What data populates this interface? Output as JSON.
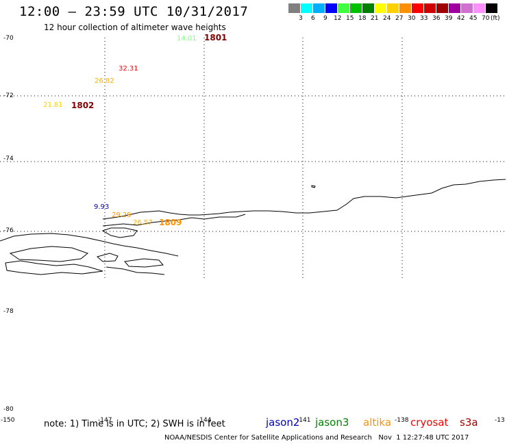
{
  "title": "12:00 – 23:59 UTC 10/31/2017",
  "subtitle": "12 hour collection of altimeter wave heights",
  "color_scale": {
    "unit": "(ft)",
    "colors": [
      "#808080",
      "#00ffff",
      "#00b0ff",
      "#0000ff",
      "#40ff40",
      "#00c000",
      "#008000",
      "#ffff00",
      "#ffd000",
      "#ff9000",
      "#ff0000",
      "#d00000",
      "#a00000",
      "#a000a0",
      "#d070d0",
      "#ff90ff",
      "#000000"
    ],
    "labels": [
      "3",
      "6",
      "9",
      "12",
      "15",
      "18",
      "21",
      "24",
      "27",
      "30",
      "33",
      "36",
      "39",
      "42",
      "45",
      "70"
    ]
  },
  "y_axis": {
    "labels": [
      "-70",
      "-72",
      "-74",
      "-76",
      "-78",
      "-80"
    ]
  },
  "x_axis": {
    "labels": [
      "-150",
      "-147",
      "-144",
      "-141",
      "-138",
      "-13"
    ]
  },
  "observations": [
    {
      "value": "14.01",
      "color": "#80ff80"
    },
    {
      "value": "32.31",
      "color": "#ff0000"
    },
    {
      "value": "26.82",
      "color": "#ffb000"
    },
    {
      "value": "21.81",
      "color": "#ffd000"
    },
    {
      "value": "9.93",
      "color": "#0000c0"
    },
    {
      "value": "29.29",
      "color": "#ff9000"
    },
    {
      "value": "26.57",
      "color": "#ffb000"
    }
  ],
  "tile_labels": [
    {
      "text": "1801",
      "color": "#800000"
    },
    {
      "text": "1802",
      "color": "#800000"
    },
    {
      "text": "1809",
      "color": "#ff9000"
    }
  ],
  "note": "note: 1) Time is in UTC; 2) SWH is in feet",
  "missions": [
    {
      "name": "jason2",
      "color": "#0000c0"
    },
    {
      "name": "jason3",
      "color": "#008000"
    },
    {
      "name": "altika",
      "color": "#ff9000"
    },
    {
      "name": "cryosat",
      "color": "#ff0000"
    },
    {
      "name": "s3a",
      "color": "#a00000"
    }
  ],
  "credit": "NOAA/NESDIS Center for Satellite Applications and Research   Nov  1 12:27:48 UTC 2017"
}
